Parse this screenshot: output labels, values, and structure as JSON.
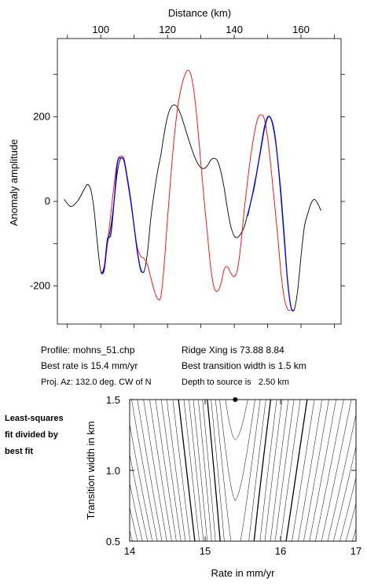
{
  "chart_data": [
    {
      "type": "line",
      "title": "",
      "xlabel": "Distance (km)",
      "ylabel": "Anomaly amplitude",
      "xlim": [
        87,
        172
      ],
      "ylim": [
        -290,
        385
      ],
      "x_ticks": [
        100,
        120,
        140,
        160
      ],
      "y_ticks": [
        -200,
        0,
        200
      ],
      "x_minor_step": 10,
      "y_minor_step": 100,
      "grid": false,
      "series": [
        {
          "color": "#000000",
          "points": [
            [
              89,
              5
            ],
            [
              91,
              -12
            ],
            [
              93,
              0
            ],
            [
              95,
              28
            ],
            [
              96,
              40
            ],
            [
              97,
              28
            ],
            [
              98,
              -20
            ],
            [
              99,
              -100
            ],
            [
              100,
              -165
            ],
            [
              101,
              -155
            ],
            [
              102,
              -100
            ],
            [
              103,
              -60
            ],
            [
              104,
              0
            ],
            [
              105,
              70
            ],
            [
              106,
              102
            ],
            [
              107,
              95
            ],
            [
              108,
              55
            ],
            [
              109,
              5
            ],
            [
              110,
              -60
            ],
            [
              111,
              -120
            ],
            [
              112,
              -160
            ],
            [
              113,
              -165
            ],
            [
              114,
              -120
            ],
            [
              115,
              -40
            ],
            [
              116,
              20
            ],
            [
              117,
              70
            ],
            [
              118,
              110
            ],
            [
              119,
              160
            ],
            [
              120,
              200
            ],
            [
              121,
              222
            ],
            [
              122,
              228
            ],
            [
              123,
              222
            ],
            [
              124,
              205
            ],
            [
              125,
              180
            ],
            [
              126,
              155
            ],
            [
              127,
              130
            ],
            [
              128,
              108
            ],
            [
              129,
              90
            ],
            [
              130,
              80
            ],
            [
              131,
              78
            ],
            [
              132,
              85
            ],
            [
              133,
              98
            ],
            [
              134,
              102
            ],
            [
              135,
              95
            ],
            [
              136,
              70
            ],
            [
              137,
              30
            ],
            [
              138,
              -20
            ],
            [
              139,
              -60
            ],
            [
              140,
              -82
            ],
            [
              141,
              -85
            ],
            [
              142,
              -76
            ],
            [
              143,
              -60
            ],
            [
              144,
              -30
            ],
            [
              145,
              0
            ],
            [
              146,
              40
            ],
            [
              147,
              80
            ],
            [
              148,
              130
            ],
            [
              149,
              175
            ],
            [
              150,
              200
            ],
            [
              151,
              195
            ],
            [
              152,
              160
            ],
            [
              153,
              100
            ],
            [
              154,
              20
            ],
            [
              155,
              -80
            ],
            [
              156,
              -190
            ],
            [
              157,
              -250
            ],
            [
              158,
              -255
            ],
            [
              159,
              -210
            ],
            [
              160,
              -130
            ],
            [
              161,
              -60
            ],
            [
              162,
              -30
            ],
            [
              163,
              -5
            ],
            [
              164,
              5
            ],
            [
              165,
              -5
            ],
            [
              166,
              -22
            ]
          ]
        },
        {
          "color": "#ff0000",
          "points": [
            [
              100,
              -170
            ],
            [
              101,
              -165
            ],
            [
              102,
              -100
            ],
            [
              103,
              -30
            ],
            [
              104,
              40
            ],
            [
              105,
              95
            ],
            [
              106,
              107
            ],
            [
              107,
              100
            ],
            [
              108,
              55
            ],
            [
              109,
              0
            ],
            [
              110,
              -60
            ],
            [
              111,
              -110
            ],
            [
              112,
              -130
            ],
            [
              113,
              -135
            ],
            [
              114,
              -150
            ],
            [
              115,
              -180
            ],
            [
              116,
              -210
            ],
            [
              117,
              -230
            ],
            [
              118,
              -225
            ],
            [
              119,
              -150
            ],
            [
              120,
              -40
            ],
            [
              121,
              60
            ],
            [
              122,
              150
            ],
            [
              123,
              220
            ],
            [
              124,
              265
            ],
            [
              125,
              295
            ],
            [
              126,
              310
            ],
            [
              127,
              300
            ],
            [
              128,
              255
            ],
            [
              129,
              180
            ],
            [
              130,
              90
            ],
            [
              131,
              0
            ],
            [
              132,
              -80
            ],
            [
              133,
              -160
            ],
            [
              134,
              -205
            ],
            [
              135,
              -212
            ],
            [
              136,
              -195
            ],
            [
              137,
              -160
            ],
            [
              138,
              -155
            ],
            [
              139,
              -170
            ],
            [
              140,
              -178
            ],
            [
              141,
              -160
            ],
            [
              142,
              -100
            ],
            [
              143,
              -20
            ],
            [
              144,
              50
            ],
            [
              145,
              110
            ],
            [
              146,
              160
            ],
            [
              147,
              195
            ],
            [
              148,
              205
            ],
            [
              149,
              195
            ],
            [
              150,
              150
            ],
            [
              151,
              80
            ],
            [
              152,
              0
            ],
            [
              153,
              -80
            ],
            [
              154,
              -170
            ],
            [
              155,
              -230
            ],
            [
              156,
              -255
            ],
            [
              157,
              -258
            ]
          ]
        },
        {
          "color": "#0000ff",
          "points": [
            [
              100,
              -170
            ],
            [
              101,
              -160
            ],
            [
              102,
              -90
            ],
            [
              103,
              -78
            ],
            [
              104,
              0
            ],
            [
              105,
              90
            ],
            [
              106,
              103
            ],
            [
              107,
              95
            ],
            [
              108,
              50
            ],
            [
              109,
              0
            ],
            [
              110,
              -60
            ],
            [
              111,
              -120
            ],
            [
              112,
              -163
            ],
            [
              113,
              -168
            ]
          ],
          "points_b": [
            [
              144,
              -35
            ],
            [
              145,
              0
            ],
            [
              146,
              35
            ],
            [
              147,
              80
            ],
            [
              148,
              125
            ],
            [
              149,
              170
            ],
            [
              150,
              198
            ],
            [
              151,
              196
            ],
            [
              152,
              165
            ],
            [
              153,
              100
            ],
            [
              154,
              10
            ],
            [
              155,
              -90
            ],
            [
              156,
              -190
            ],
            [
              157,
              -250
            ],
            [
              158,
              -258
            ]
          ]
        }
      ]
    },
    {
      "type": "contour",
      "title": "",
      "xlabel": "Rate in mm/yr",
      "ylabel": "Transition width in km",
      "xlim": [
        14,
        17
      ],
      "ylim": [
        0.5,
        1.5
      ],
      "x_ticks": [
        14,
        15,
        16,
        17
      ],
      "y_ticks": [
        0.5,
        1.0,
        1.5
      ],
      "x_tick_labels": [
        "14",
        "15",
        "16",
        "17"
      ],
      "y_tick_labels": [
        "0.5",
        "1.0",
        "1.5"
      ],
      "best_fit": {
        "rate": 15.4,
        "width": 1.5
      },
      "bold_levels": [
        4,
        10
      ],
      "levels": [
        1.1,
        1.25,
        1.4,
        1.6,
        1.8,
        2.1,
        2.4,
        2.8,
        3.2,
        3.7,
        4.3,
        5.0,
        5.8,
        6.6,
        7.5,
        8.5,
        9.6,
        10.8,
        12.0,
        13.4,
        14.8,
        16.4,
        18.0,
        19.8,
        21.6,
        23.6,
        25.6
      ]
    }
  ],
  "info": {
    "profile": "Profile: mohns_51.chp",
    "best_rate": "Best rate is 15.4 mm/yr",
    "proj_az": "Proj. Az: 132.0 deg. CW of N",
    "ridge_xing": "Ridge Xing is 73.88 8.84",
    "best_width": "Best transition width is 1.5 km",
    "depth": "Depth to source is   2.50 km"
  },
  "side_note": [
    "Least-squares",
    "fit divided by",
    "best fit"
  ]
}
